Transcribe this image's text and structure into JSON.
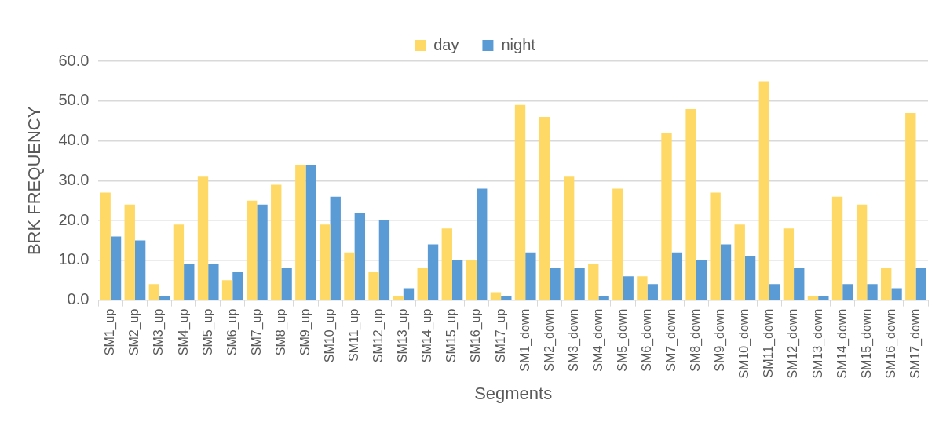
{
  "chart_data": {
    "type": "bar",
    "xlabel": "Segments",
    "ylabel": "BRK FREQUENCY",
    "categories": [
      "SM1_up",
      "SM2_up",
      "SM3_up",
      "SM4_up",
      "SM5_up",
      "SM6_up",
      "SM7_up",
      "SM8_up",
      "SM9_up",
      "SM10_up",
      "SM11_up",
      "SM12_up",
      "SM13_up",
      "SM14_up",
      "SM15_up",
      "SM16_up",
      "SM17_up",
      "SM1_down",
      "SM2_down",
      "SM3_down",
      "SM4_down",
      "SM5_down",
      "SM6_down",
      "SM7_down",
      "SM8_down",
      "SM9_down",
      "SM10_down",
      "SM11_down",
      "SM12_down",
      "SM13_down",
      "SM14_down",
      "SM15_down",
      "SM16_down",
      "SM17_down"
    ],
    "series": [
      {
        "name": "day",
        "color": "#ffd966",
        "values": [
          27,
          24,
          4,
          19,
          31,
          5,
          25,
          29,
          34,
          19,
          12,
          7,
          1,
          8,
          18,
          10,
          2,
          49,
          46,
          31,
          9,
          28,
          6,
          42,
          48,
          27,
          19,
          55,
          18,
          1,
          26,
          24,
          8,
          47
        ]
      },
      {
        "name": "night",
        "color": "#5b9bd5",
        "values": [
          16,
          15,
          1,
          9,
          9,
          7,
          24,
          8,
          34,
          26,
          22,
          20,
          3,
          14,
          10,
          28,
          1,
          12,
          8,
          8,
          1,
          6,
          4,
          12,
          10,
          14,
          11,
          4,
          8,
          1,
          4,
          4,
          3,
          8
        ]
      }
    ],
    "ylim": [
      0,
      60
    ],
    "yticks": [
      {
        "value": 0,
        "label": "0.0"
      },
      {
        "value": 10,
        "label": "10.0"
      },
      {
        "value": 20,
        "label": "20.0"
      },
      {
        "value": 30,
        "label": "30.0"
      },
      {
        "value": 40,
        "label": "40.0"
      },
      {
        "value": 50,
        "label": "50.0"
      },
      {
        "value": 60,
        "label": "60.0"
      }
    ],
    "grid": "y",
    "legend": "top"
  }
}
